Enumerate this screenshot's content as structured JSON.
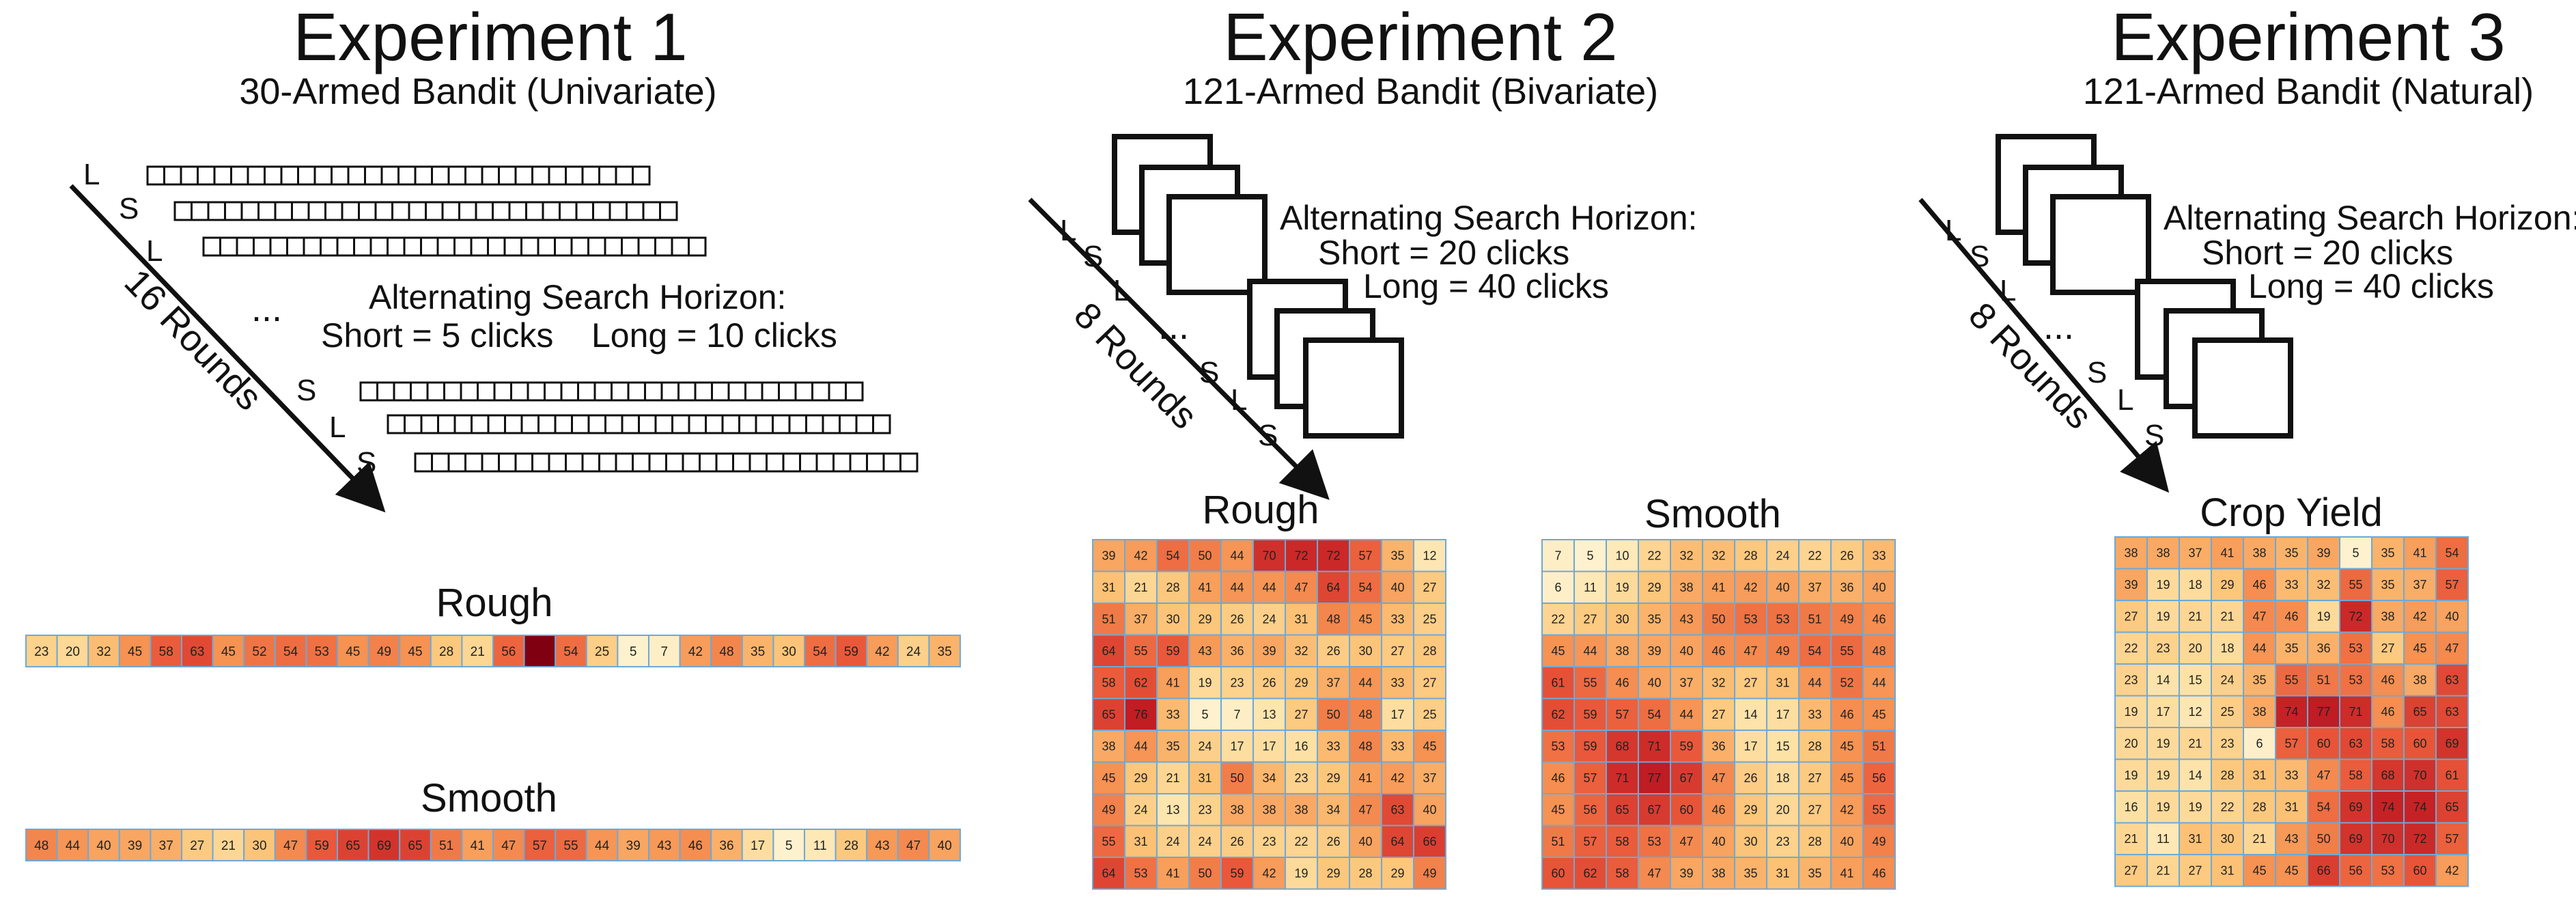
{
  "experiments": [
    {
      "title": "Experiment 1",
      "subtitle": "30-Armed Bandit (Univariate)",
      "rounds": "16 Rounds",
      "seq_top": [
        "L",
        "S",
        "L"
      ],
      "seq_bottom": [
        "S",
        "L",
        "S"
      ],
      "ellipsis": "...",
      "horizon_lines": [
        "Alternating Search Horizon:",
        "Short = 5 clicks    Long = 10 clicks"
      ]
    },
    {
      "title": "Experiment 2",
      "subtitle": "121-Armed Bandit (Bivariate)",
      "rounds": "8 Rounds",
      "seq_top": [
        "L",
        "S",
        "L"
      ],
      "seq_bottom": [
        "S",
        "L",
        "S"
      ],
      "ellipsis": "...",
      "horizon_lines": [
        "Alternating Search Horizon:",
        "Short = 20 clicks",
        "Long = 40 clicks"
      ]
    },
    {
      "title": "Experiment 3",
      "subtitle": "121-Armed Bandit (Natural)",
      "rounds": "8 Rounds",
      "seq_top": [
        "L",
        "S",
        "L"
      ],
      "seq_bottom": [
        "S",
        "L",
        "S"
      ],
      "ellipsis": "...",
      "horizon_lines": [
        "Alternating Search Horizon:",
        "Short = 20 clicks",
        "Long = 40 clicks"
      ]
    }
  ],
  "exp1_rough": {
    "title": "Rough",
    "values": [
      23,
      20,
      32,
      45,
      58,
      63,
      45,
      52,
      54,
      53,
      45,
      49,
      45,
      28,
      21,
      56,
      null,
      54,
      25,
      5,
      7,
      42,
      48,
      35,
      30,
      54,
      59,
      42,
      24,
      35
    ]
  },
  "exp1_smooth": {
    "title": "Smooth",
    "values": [
      48,
      44,
      40,
      39,
      37,
      27,
      21,
      30,
      47,
      59,
      65,
      69,
      65,
      51,
      41,
      47,
      57,
      55,
      44,
      39,
      43,
      46,
      36,
      17,
      5,
      11,
      28,
      43,
      47,
      40
    ]
  },
  "exp2_rough": {
    "title": "Rough",
    "rows": [
      [
        39,
        42,
        54,
        50,
        44,
        70,
        72,
        72,
        57,
        35,
        12
      ],
      [
        31,
        21,
        28,
        41,
        44,
        44,
        47,
        64,
        54,
        40,
        27
      ],
      [
        51,
        37,
        30,
        29,
        26,
        24,
        31,
        48,
        45,
        33,
        25
      ],
      [
        64,
        55,
        59,
        43,
        36,
        39,
        32,
        26,
        30,
        27,
        28
      ],
      [
        58,
        62,
        41,
        19,
        23,
        26,
        29,
        37,
        44,
        33,
        27
      ],
      [
        65,
        76,
        33,
        5,
        7,
        13,
        27,
        50,
        48,
        17,
        25
      ],
      [
        38,
        44,
        35,
        24,
        17,
        17,
        16,
        33,
        48,
        33,
        45
      ],
      [
        45,
        29,
        21,
        31,
        50,
        34,
        23,
        29,
        41,
        42,
        37
      ],
      [
        49,
        24,
        13,
        23,
        38,
        38,
        38,
        34,
        47,
        63,
        40
      ],
      [
        55,
        31,
        24,
        24,
        26,
        23,
        22,
        26,
        40,
        64,
        66
      ],
      [
        64,
        53,
        41,
        50,
        59,
        42,
        19,
        29,
        28,
        29,
        49
      ]
    ]
  },
  "exp2_smooth": {
    "title": "Smooth",
    "rows": [
      [
        7,
        5,
        10,
        22,
        32,
        32,
        28,
        24,
        22,
        26,
        33
      ],
      [
        6,
        11,
        19,
        29,
        38,
        41,
        42,
        40,
        37,
        36,
        40
      ],
      [
        22,
        27,
        30,
        35,
        43,
        50,
        53,
        53,
        51,
        49,
        46
      ],
      [
        45,
        44,
        38,
        39,
        40,
        46,
        47,
        49,
        54,
        55,
        48
      ],
      [
        61,
        55,
        46,
        40,
        37,
        32,
        27,
        31,
        44,
        52,
        44
      ],
      [
        62,
        59,
        57,
        54,
        44,
        27,
        14,
        17,
        33,
        46,
        45
      ],
      [
        53,
        59,
        68,
        71,
        59,
        36,
        17,
        15,
        28,
        45,
        51
      ],
      [
        46,
        57,
        71,
        77,
        67,
        47,
        26,
        18,
        27,
        45,
        56
      ],
      [
        45,
        56,
        65,
        67,
        60,
        46,
        29,
        20,
        27,
        42,
        55
      ],
      [
        51,
        57,
        58,
        53,
        47,
        40,
        30,
        23,
        28,
        40,
        49
      ],
      [
        60,
        62,
        58,
        47,
        39,
        38,
        35,
        31,
        35,
        41,
        46
      ]
    ]
  },
  "exp3_crop": {
    "title": "Crop Yield",
    "rows": [
      [
        38,
        38,
        37,
        41,
        38,
        35,
        39,
        5,
        35,
        41,
        54
      ],
      [
        39,
        19,
        18,
        29,
        46,
        33,
        32,
        55,
        35,
        37,
        57
      ],
      [
        27,
        19,
        21,
        21,
        47,
        46,
        19,
        72,
        38,
        42,
        40
      ],
      [
        22,
        23,
        20,
        18,
        44,
        35,
        36,
        53,
        27,
        45,
        47
      ],
      [
        23,
        14,
        15,
        24,
        35,
        55,
        51,
        53,
        46,
        38,
        63
      ],
      [
        19,
        17,
        12,
        25,
        38,
        74,
        77,
        71,
        46,
        65,
        63
      ],
      [
        20,
        19,
        21,
        23,
        6,
        57,
        60,
        63,
        58,
        60,
        69
      ],
      [
        19,
        19,
        14,
        28,
        31,
        33,
        47,
        58,
        68,
        70,
        61
      ],
      [
        16,
        19,
        19,
        22,
        28,
        31,
        54,
        69,
        74,
        74,
        65
      ],
      [
        21,
        11,
        31,
        30,
        21,
        43,
        50,
        69,
        70,
        72,
        57
      ],
      [
        27,
        21,
        27,
        31,
        45,
        45,
        66,
        56,
        53,
        60,
        42
      ]
    ]
  }
}
